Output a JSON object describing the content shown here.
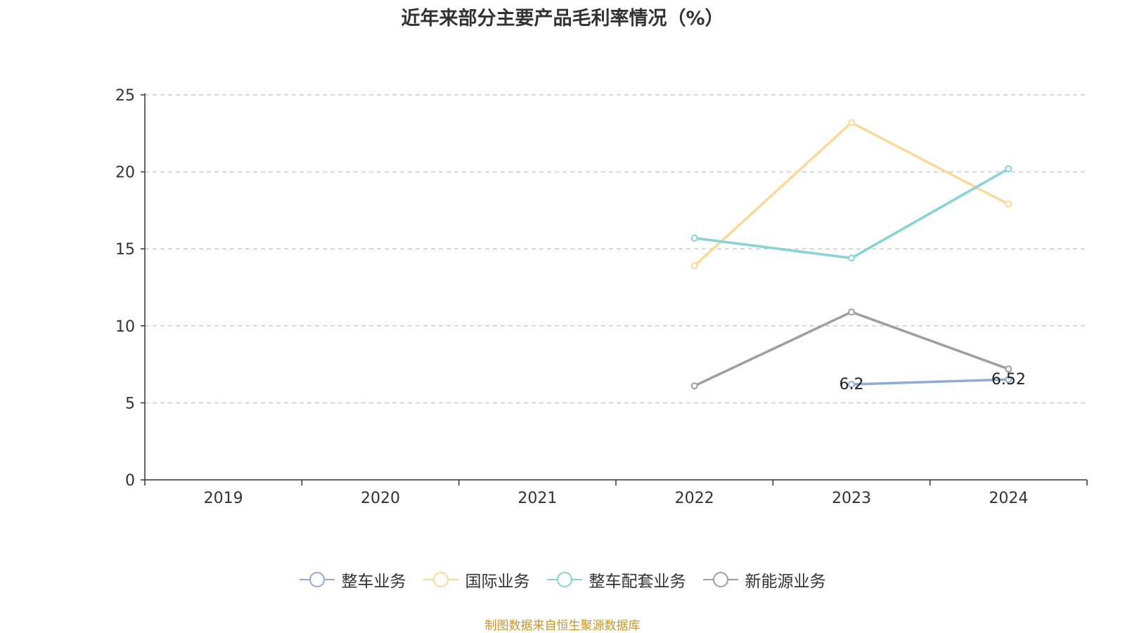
{
  "chart_data": {
    "type": "line",
    "title": "近年来部分主要产品毛利率情况（%）",
    "categories": [
      "2019",
      "2020",
      "2021",
      "2022",
      "2023",
      "2024"
    ],
    "ylim": [
      0,
      25
    ],
    "yticks": [
      0,
      5,
      10,
      15,
      20,
      25
    ],
    "grid": true,
    "legend_position": "bottom",
    "series": [
      {
        "name": "整车业务",
        "color": "#8eabd8",
        "values": [
          null,
          null,
          null,
          null,
          6.2,
          6.52
        ],
        "labels": [
          "",
          "",
          "",
          "",
          "6.2",
          "6.52"
        ]
      },
      {
        "name": "国际业务",
        "color": "#fcd99b",
        "values": [
          null,
          null,
          null,
          13.9,
          23.2,
          17.9
        ]
      },
      {
        "name": "整车配套业务",
        "color": "#85d3d3",
        "values": [
          null,
          null,
          null,
          15.7,
          14.4,
          20.2
        ]
      },
      {
        "name": "新能源业务",
        "color": "#9e9e9e",
        "values": [
          null,
          null,
          null,
          6.1,
          10.9,
          7.2
        ]
      }
    ]
  },
  "source": "制图数据来自恒生聚源数据库"
}
